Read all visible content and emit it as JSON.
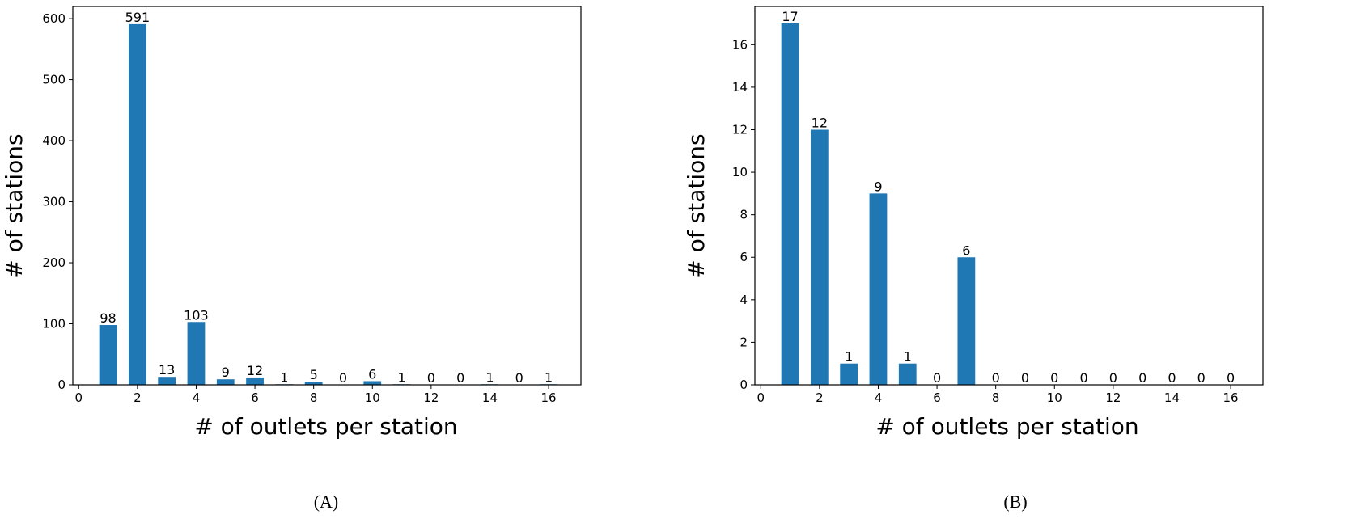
{
  "chart_data": [
    {
      "type": "bar",
      "caption": "(A)",
      "xlabel": "# of outlets per station",
      "ylabel": "# of stations",
      "x": [
        1,
        2,
        3,
        4,
        5,
        6,
        7,
        8,
        9,
        10,
        11,
        12,
        13,
        14,
        15,
        16
      ],
      "values": [
        98,
        591,
        13,
        103,
        9,
        12,
        1,
        5,
        0,
        6,
        1,
        0,
        0,
        1,
        0,
        1
      ],
      "xticks": [
        0,
        2,
        4,
        6,
        8,
        10,
        12,
        14,
        16
      ],
      "yticks": [
        0,
        100,
        200,
        300,
        400,
        500,
        600
      ],
      "xlim": [
        -0.2,
        17.1
      ],
      "ylim": [
        0,
        620
      ],
      "color": "#1f77b4",
      "data_labels": true,
      "grid": false
    },
    {
      "type": "bar",
      "caption": "(B)",
      "xlabel": "# of outlets per station",
      "ylabel": "# of stations",
      "x": [
        1,
        2,
        3,
        4,
        5,
        6,
        7,
        8,
        9,
        10,
        11,
        12,
        13,
        14,
        15,
        16
      ],
      "values": [
        17,
        12,
        1,
        9,
        1,
        0,
        6,
        0,
        0,
        0,
        0,
        0,
        0,
        0,
        0,
        0
      ],
      "xticks": [
        0,
        2,
        4,
        6,
        8,
        10,
        12,
        14,
        16
      ],
      "yticks": [
        0,
        2,
        4,
        6,
        8,
        10,
        12,
        14,
        16
      ],
      "xlim": [
        -0.2,
        17.1
      ],
      "ylim": [
        0,
        17.8
      ],
      "color": "#1f77b4",
      "data_labels": true,
      "grid": false
    }
  ]
}
